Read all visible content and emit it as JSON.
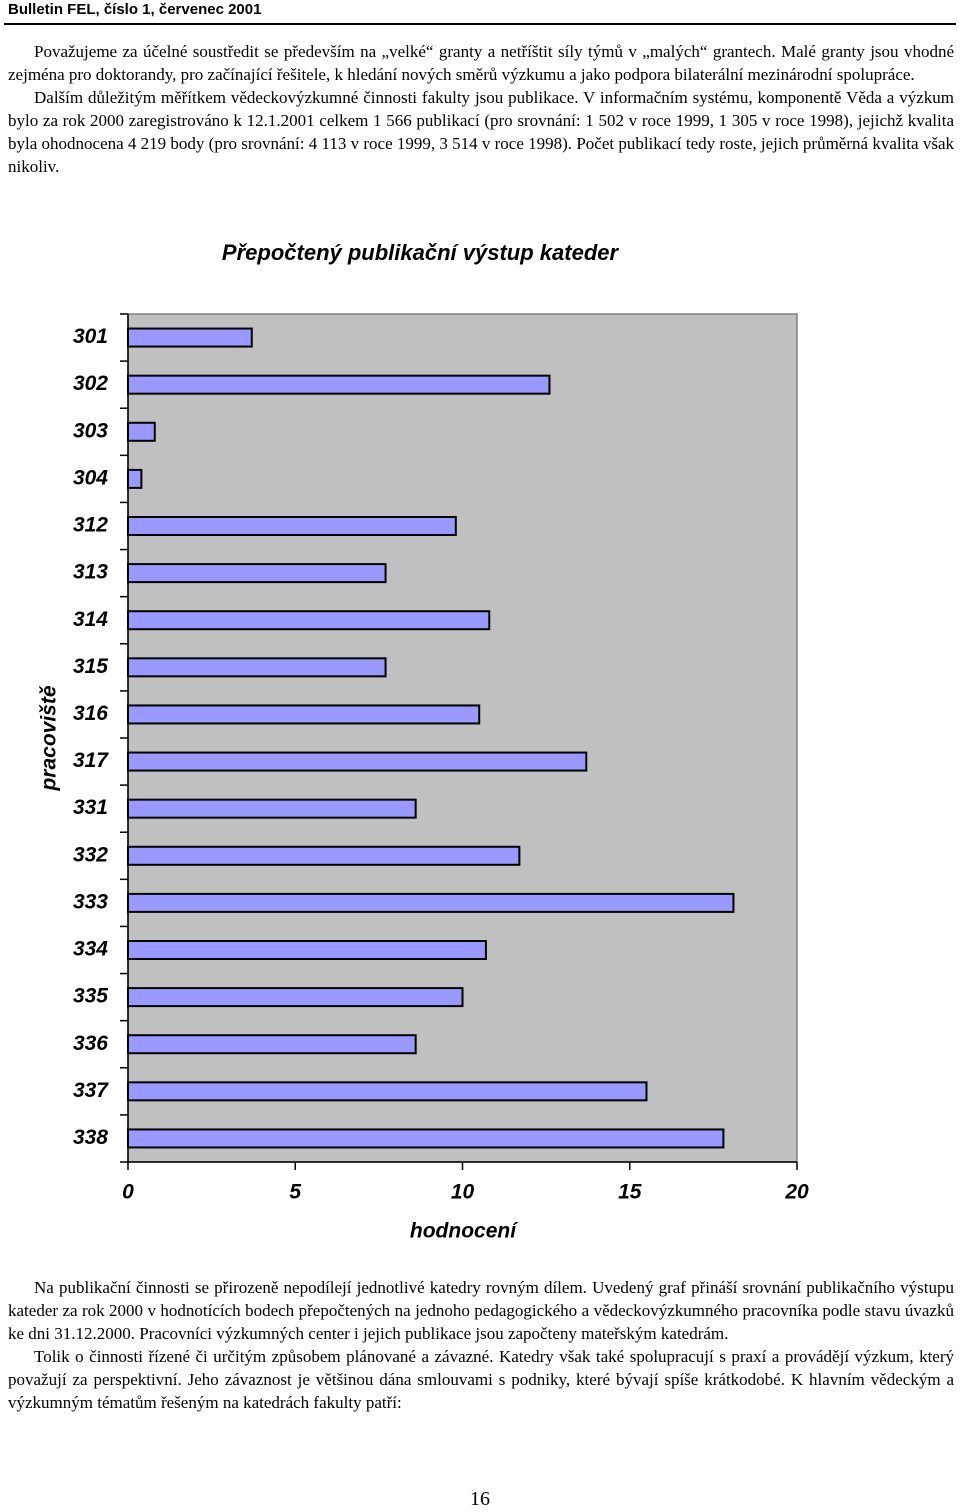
{
  "header": {
    "title": "Bulletin FEL, číslo 1, červenec 2001"
  },
  "paragraphs_before": [
    "Považujeme za účelné soustředit se především na „velké“ granty a netříštit síly týmů v „malých“ grantech. Malé granty jsou vhodné zejména pro doktorandy, pro začínající řešitele, k hledání nových směrů výzkumu a jako podpora bilaterální mezinárodní spolupráce.",
    "Dalším důležitým měřítkem vědeckovýzkumné činnosti fakulty jsou publikace. V informačním systému, komponentě Věda a výzkum bylo za rok 2000 zaregistrováno k 12.1.2001 celkem 1 566 publikací (pro srovnání: 1 502 v roce 1999, 1 305 v roce 1998), jejichž kvalita byla ohodnocena 4 219 body (pro srovnání: 4 113 v roce 1999, 3 514 v roce 1998). Počet publikací tedy roste, jejich průměrná kvalita však nikoliv."
  ],
  "chart_data": {
    "type": "bar",
    "orientation": "horizontal",
    "title": "Přepočtený publikační výstup kateder",
    "xlabel": "hodnocení",
    "ylabel": "pracoviště",
    "categories": [
      "301",
      "302",
      "303",
      "304",
      "312",
      "313",
      "314",
      "315",
      "316",
      "317",
      "331",
      "332",
      "333",
      "334",
      "335",
      "336",
      "337",
      "338"
    ],
    "values": [
      3.7,
      12.6,
      0.8,
      0.4,
      9.8,
      7.7,
      10.8,
      7.7,
      10.5,
      13.7,
      8.6,
      11.7,
      18.1,
      10.7,
      10.0,
      8.6,
      15.5,
      17.8
    ],
    "color": "#9999ff",
    "background": "#c0c0c0",
    "xlim": [
      0,
      20
    ],
    "xticks": [
      0,
      5,
      10,
      15,
      20
    ]
  },
  "paragraphs_after": [
    "Na publikační činnosti se přirozeně nepodílejí jednotlivé katedry rovným dílem. Uvedený graf přináší srovnání publikačního výstupu kateder za rok 2000 v hodnotících bodech přepočtených na jednoho pedagogického a vědeckovýzkumného pracovníka podle stavu úvazků ke dni 31.12.2000. Pracovníci výzkumných center i jejich publikace jsou započteny mateřským katedrám.",
    "Tolik o činnosti řízené či určitým způsobem plánované a závazné. Katedry však také spolupracují s praxí a provádějí výzkum, který považují za perspektivní. Jeho závaznost je většinou dána smlouvami s podniky, které bývají spíše krátkodobé. K hlavním vědeckým a výzkumným tématům řešeným na katedrách fakulty patří:"
  ],
  "page_number": "16"
}
